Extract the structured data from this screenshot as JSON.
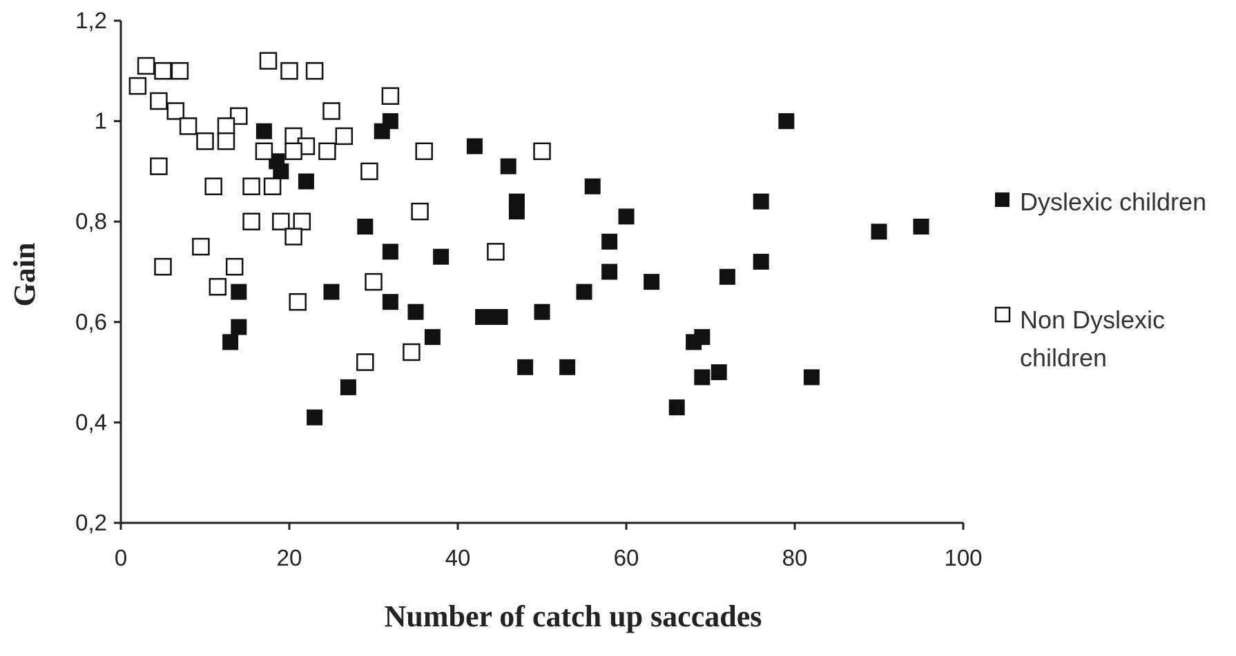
{
  "chart_data": {
    "type": "scatter",
    "xlabel": "Number of catch up saccades",
    "ylabel": "Gain",
    "xlim": [
      0,
      100
    ],
    "ylim": [
      0.2,
      1.2
    ],
    "x_ticks": [
      {
        "value": 0,
        "label": "0"
      },
      {
        "value": 20,
        "label": "20"
      },
      {
        "value": 40,
        "label": "40"
      },
      {
        "value": 60,
        "label": "60"
      },
      {
        "value": 80,
        "label": "80"
      },
      {
        "value": 100,
        "label": "100"
      }
    ],
    "y_ticks": [
      {
        "value": 0.2,
        "label": "0,2"
      },
      {
        "value": 0.4,
        "label": "0,4"
      },
      {
        "value": 0.6,
        "label": "0,6"
      },
      {
        "value": 0.8,
        "label": "0,8"
      },
      {
        "value": 1.0,
        "label": "1"
      },
      {
        "value": 1.2,
        "label": "1,2"
      }
    ],
    "grid": false,
    "legend_position": "right",
    "series": [
      {
        "name": "Dyslexic children",
        "marker": "filled-square",
        "color": "#111111",
        "points": [
          [
            17,
            0.98
          ],
          [
            18.5,
            0.92
          ],
          [
            19,
            0.9
          ],
          [
            22,
            0.88
          ],
          [
            31,
            0.98
          ],
          [
            32,
            1.0
          ],
          [
            42,
            0.95
          ],
          [
            46,
            0.91
          ],
          [
            47,
            0.84
          ],
          [
            47,
            0.82
          ],
          [
            56,
            0.87
          ],
          [
            60,
            0.81
          ],
          [
            58,
            0.76
          ],
          [
            58,
            0.7
          ],
          [
            63,
            0.68
          ],
          [
            79,
            1.0
          ],
          [
            76,
            0.84
          ],
          [
            76,
            0.72
          ],
          [
            72,
            0.69
          ],
          [
            90,
            0.78
          ],
          [
            95,
            0.79
          ],
          [
            14,
            0.66
          ],
          [
            14,
            0.59
          ],
          [
            13,
            0.56
          ],
          [
            25,
            0.66
          ],
          [
            29,
            0.79
          ],
          [
            32,
            0.74
          ],
          [
            32,
            0.64
          ],
          [
            35,
            0.62
          ],
          [
            38,
            0.73
          ],
          [
            37,
            0.57
          ],
          [
            43,
            0.61
          ],
          [
            44,
            0.61
          ],
          [
            45,
            0.61
          ],
          [
            50,
            0.62
          ],
          [
            55,
            0.66
          ],
          [
            48,
            0.51
          ],
          [
            53,
            0.51
          ],
          [
            27,
            0.47
          ],
          [
            23,
            0.41
          ],
          [
            68,
            0.56
          ],
          [
            69,
            0.57
          ],
          [
            69,
            0.49
          ],
          [
            71,
            0.5
          ],
          [
            82,
            0.49
          ],
          [
            66,
            0.43
          ]
        ]
      },
      {
        "name": "Non Dyslexic children",
        "marker": "open-square",
        "color": "#111111",
        "points": [
          [
            2,
            1.07
          ],
          [
            3,
            1.11
          ],
          [
            5,
            1.1
          ],
          [
            7,
            1.1
          ],
          [
            4.5,
            1.04
          ],
          [
            6.5,
            1.02
          ],
          [
            8,
            0.99
          ],
          [
            17.5,
            1.12
          ],
          [
            20,
            1.1
          ],
          [
            23,
            1.1
          ],
          [
            32,
            1.05
          ],
          [
            25,
            1.02
          ],
          [
            14,
            1.01
          ],
          [
            12.5,
            0.99
          ],
          [
            10,
            0.96
          ],
          [
            12.5,
            0.96
          ],
          [
            17,
            0.94
          ],
          [
            20.5,
            0.97
          ],
          [
            22,
            0.95
          ],
          [
            20.5,
            0.94
          ],
          [
            24.5,
            0.94
          ],
          [
            26.5,
            0.97
          ],
          [
            4.5,
            0.91
          ],
          [
            11,
            0.87
          ],
          [
            15.5,
            0.87
          ],
          [
            18,
            0.87
          ],
          [
            29.5,
            0.9
          ],
          [
            36,
            0.94
          ],
          [
            50,
            0.94
          ],
          [
            15.5,
            0.8
          ],
          [
            19,
            0.8
          ],
          [
            21.5,
            0.8
          ],
          [
            20.5,
            0.77
          ],
          [
            35.5,
            0.82
          ],
          [
            44.5,
            0.74
          ],
          [
            9.5,
            0.75
          ],
          [
            13.5,
            0.71
          ],
          [
            5,
            0.71
          ],
          [
            11.5,
            0.67
          ],
          [
            30,
            0.68
          ],
          [
            21,
            0.64
          ],
          [
            34.5,
            0.54
          ],
          [
            29,
            0.52
          ]
        ]
      }
    ]
  },
  "legend": {
    "items": [
      {
        "label": "Dyslexic children",
        "marker": "filled-square"
      },
      {
        "label_line1": "Non Dyslexic",
        "label_line2": "children",
        "marker": "open-square"
      }
    ]
  }
}
